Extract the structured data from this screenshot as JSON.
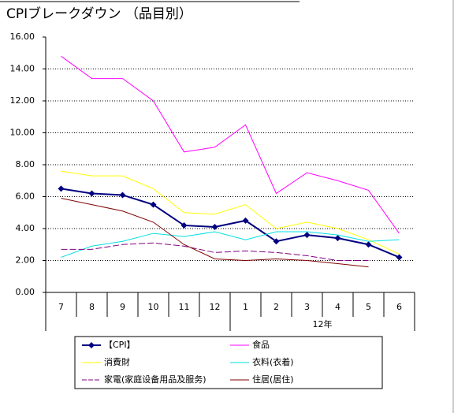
{
  "chart_data": {
    "type": "line",
    "title": "CPIブレークダウン （品目別）",
    "categories": [
      "7",
      "8",
      "9",
      "10",
      "11",
      "12",
      "1",
      "2",
      "3",
      "4",
      "5",
      "6"
    ],
    "year_label": "12年",
    "ylim": [
      0,
      16
    ],
    "yticks": [
      {
        "value": 0,
        "label": "0.00"
      },
      {
        "value": 2,
        "label": "2.00"
      },
      {
        "value": 4,
        "label": "4.00"
      },
      {
        "value": 6,
        "label": "6.00"
      },
      {
        "value": 8,
        "label": "8.00"
      },
      {
        "value": 10,
        "label": "10.00"
      },
      {
        "value": 12,
        "label": "12.00"
      },
      {
        "value": 14,
        "label": "14.00"
      },
      {
        "value": 16,
        "label": "16.00"
      }
    ],
    "grid": true,
    "series": [
      {
        "name": "【CPI】",
        "color": "#000080",
        "marker": "diamond",
        "values": [
          6.5,
          6.2,
          6.1,
          5.5,
          4.2,
          4.1,
          4.5,
          3.2,
          3.6,
          3.4,
          3.0,
          2.2
        ]
      },
      {
        "name": "食品",
        "color": "#ff00ff",
        "values": [
          14.8,
          13.4,
          13.4,
          12.0,
          8.8,
          9.1,
          10.5,
          6.2,
          7.5,
          7.0,
          6.4,
          3.7
        ]
      },
      {
        "name": "消費財",
        "color": "#ffff00",
        "values": [
          7.6,
          7.3,
          7.3,
          6.5,
          5.0,
          4.9,
          5.5,
          4.0,
          4.4,
          4.0,
          3.3,
          2.4
        ]
      },
      {
        "name": "衣料(衣着)",
        "color": "#00e0e0",
        "values": [
          2.2,
          2.9,
          3.2,
          3.7,
          3.5,
          3.8,
          3.3,
          3.8,
          3.8,
          3.6,
          3.2,
          3.3
        ]
      },
      {
        "name": "家電(家庭设备用品及服务)",
        "color": "#800080",
        "dash": true,
        "values": [
          2.7,
          2.7,
          3.0,
          3.1,
          2.9,
          2.5,
          2.6,
          2.5,
          2.3,
          2.0,
          2.0,
          null
        ]
      },
      {
        "name": "住居(居住)",
        "color": "#800000",
        "values": [
          5.9,
          5.5,
          5.1,
          4.4,
          3.0,
          2.1,
          2.0,
          2.1,
          2.0,
          1.8,
          1.6,
          null
        ]
      }
    ]
  }
}
